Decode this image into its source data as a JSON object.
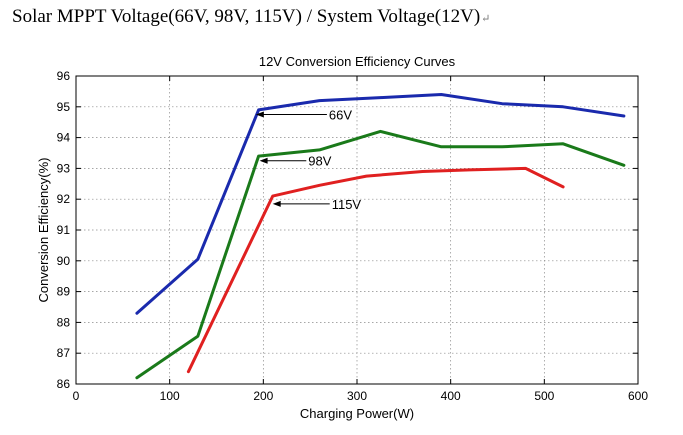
{
  "heading": {
    "text": "Solar MPPT Voltage(66V, 98V, 115V) / System Voltage(12V)",
    "paragraph_mark": "↵"
  },
  "chart_data": {
    "type": "line",
    "title": "12V Conversion Efficiency Curves",
    "xlabel": "Charging Power(W)",
    "ylabel": "Conversion Efficiency(%)",
    "xlim": [
      0,
      600
    ],
    "ylim": [
      86,
      96
    ],
    "xticks": [
      0,
      100,
      200,
      300,
      400,
      500,
      600
    ],
    "yticks": [
      86,
      87,
      88,
      89,
      90,
      91,
      92,
      93,
      94,
      95,
      96
    ],
    "grid": true,
    "series": [
      {
        "name": "66V",
        "color": "#1a2aad",
        "x": [
          65,
          130,
          195,
          260,
          325,
          390,
          455,
          520,
          585
        ],
        "y": [
          88.3,
          90.05,
          94.9,
          95.2,
          95.3,
          95.4,
          95.1,
          95.0,
          94.7
        ],
        "label_at": [
          192,
          94.75
        ],
        "label_pos": [
          270,
          94.75
        ]
      },
      {
        "name": "98V",
        "color": "#1a7a1a",
        "x": [
          65,
          130,
          195,
          260,
          325,
          390,
          455,
          520,
          585
        ],
        "y": [
          86.2,
          87.55,
          93.4,
          93.6,
          94.2,
          93.7,
          93.7,
          93.8,
          93.1
        ],
        "label_at": [
          196,
          93.25
        ],
        "label_pos": [
          248,
          93.25
        ]
      },
      {
        "name": "115V",
        "color": "#e02020",
        "x": [
          120,
          210,
          260,
          310,
          370,
          420,
          480,
          520
        ],
        "y": [
          86.4,
          92.1,
          92.45,
          92.75,
          92.9,
          92.95,
          93.0,
          92.4
        ],
        "label_at": [
          210,
          91.85
        ],
        "label_pos": [
          273,
          91.85
        ]
      }
    ]
  }
}
